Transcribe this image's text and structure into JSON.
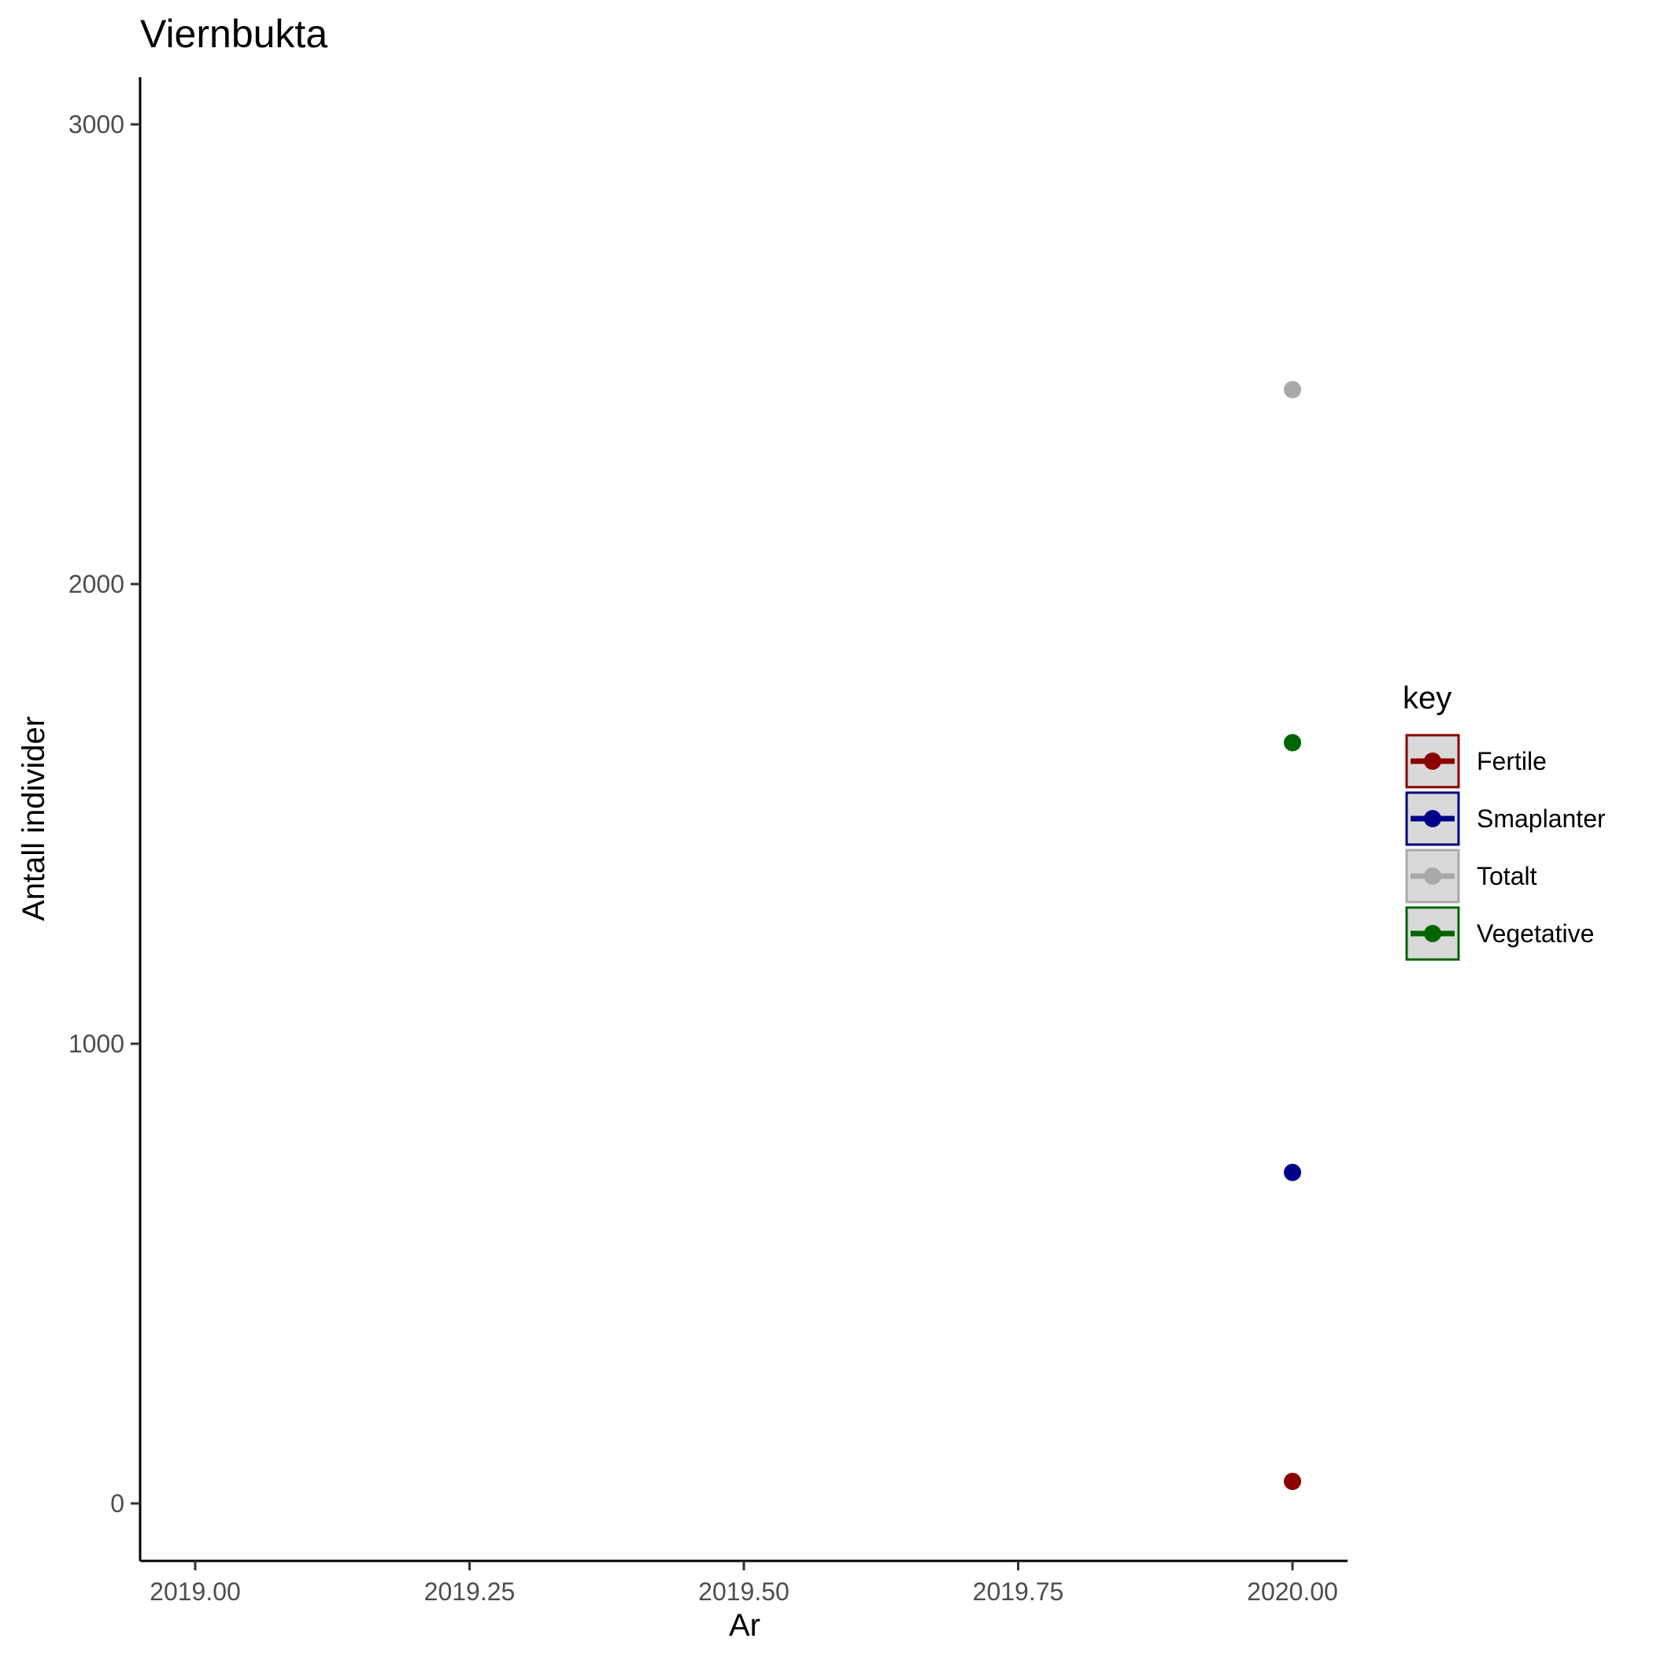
{
  "chart_data": {
    "type": "scatter",
    "title": "Viernbukta",
    "xlabel": "Ar",
    "ylabel": "Antall individer",
    "xlim": [
      2018.9,
      2020.1
    ],
    "ylim": [
      -120,
      3100
    ],
    "x_ticks": [
      {
        "value": 2019.0,
        "label": "2019.00"
      },
      {
        "value": 2019.25,
        "label": "2019.25"
      },
      {
        "value": 2019.5,
        "label": "2019.50"
      },
      {
        "value": 2019.75,
        "label": "2019.75"
      },
      {
        "value": 2020.0,
        "label": "2020.00"
      }
    ],
    "y_ticks": [
      {
        "value": 0,
        "label": "0"
      },
      {
        "value": 1000,
        "label": "1000"
      },
      {
        "value": 2000,
        "label": "2000"
      },
      {
        "value": 3000,
        "label": "3000"
      }
    ],
    "grid": false,
    "legend_title": "key",
    "legend_position": "right",
    "series": [
      {
        "name": "Fertile",
        "color": "#8b0000",
        "points": [
          {
            "x": 2020.0,
            "y": 48
          }
        ]
      },
      {
        "name": "Smaplanter",
        "color": "#00008b",
        "points": [
          {
            "x": 2020.0,
            "y": 720
          }
        ]
      },
      {
        "name": "Totalt",
        "color": "#a9a9a9",
        "points": [
          {
            "x": 2020.0,
            "y": 2423
          }
        ]
      },
      {
        "name": "Vegetative",
        "color": "#006400",
        "points": [
          {
            "x": 2020.0,
            "y": 1655
          }
        ]
      }
    ]
  }
}
